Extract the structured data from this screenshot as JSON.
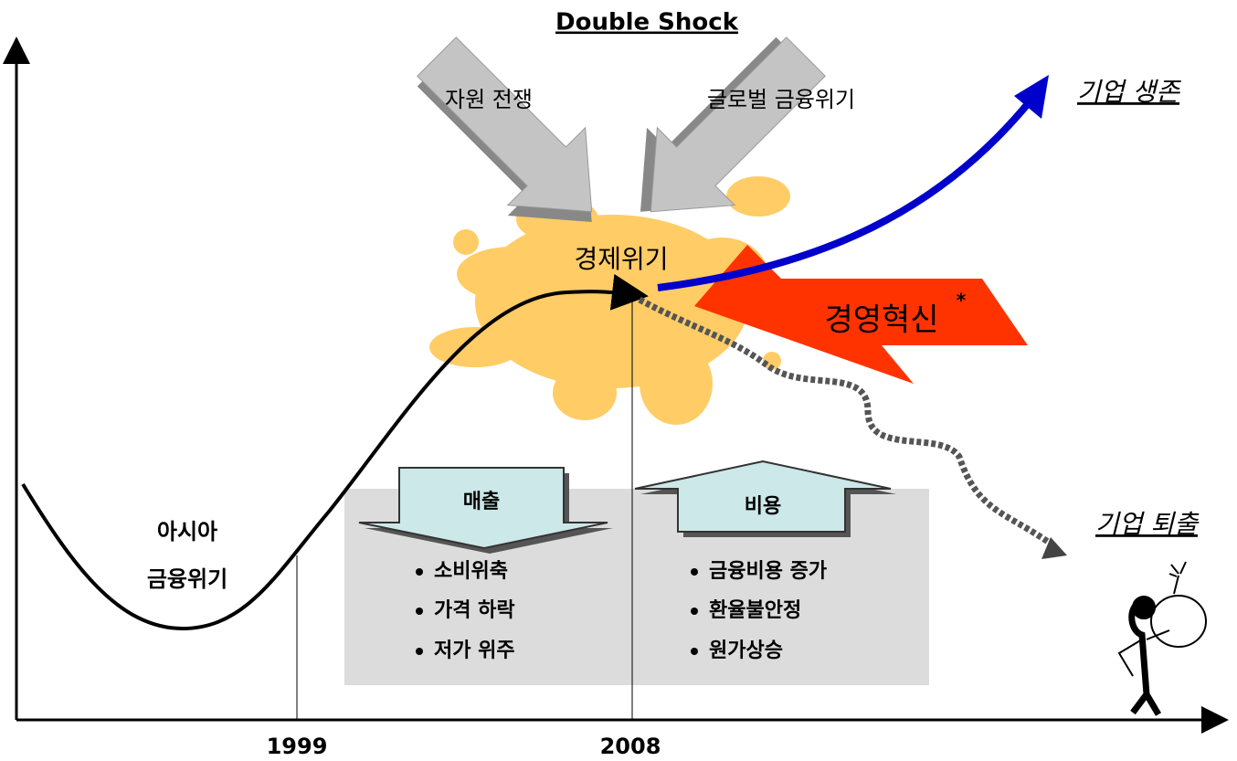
{
  "title": "Double Shock",
  "shocks": [
    "자원 전쟁",
    "글로벌 금융위기"
  ],
  "crisis": "경제위기",
  "innovation": {
    "label": "경영혁신",
    "mark": "*"
  },
  "outcomes": {
    "survival": "기업 생존",
    "exit": "기업 퇴출"
  },
  "asia_crisis": [
    "아시아",
    "금융위기"
  ],
  "sales": {
    "label": "매출",
    "items": [
      "소비위축",
      "가격 하락",
      "저가 위주"
    ]
  },
  "costs": {
    "label": "비용",
    "items": [
      "금융비용 증가",
      "환율불안정",
      "원가상승"
    ]
  },
  "years": [
    "1999",
    "2008"
  ]
}
